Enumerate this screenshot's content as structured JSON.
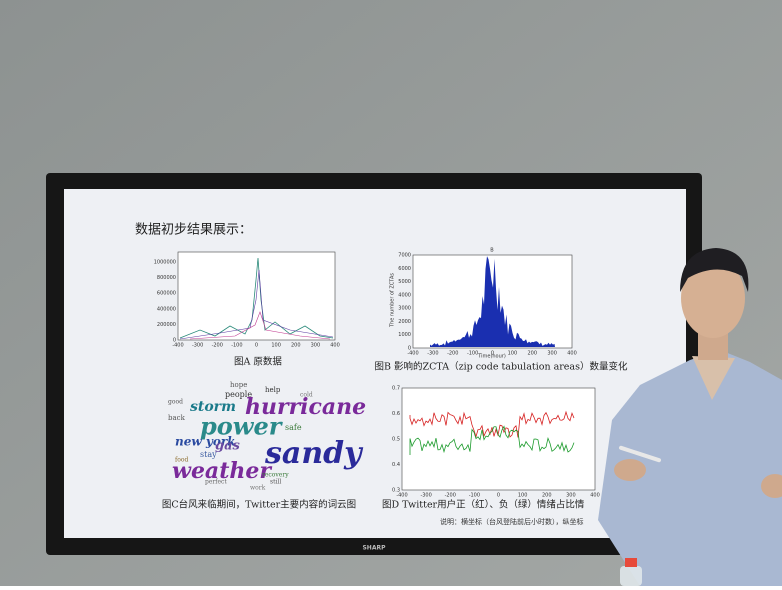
{
  "slide": {
    "title": "数据初步结果展示：",
    "figure_a": {
      "caption": "图A 原数据",
      "yticks": [
        0,
        200000,
        400000,
        600000,
        800000,
        1000000
      ],
      "xticks": [
        -400,
        -300,
        -200,
        -100,
        0,
        100,
        200,
        300,
        400
      ]
    },
    "figure_b": {
      "title": "B",
      "caption": "图B 影响的ZCTA（zip code tabulation areas）数量变化",
      "ylabel": "The number of ZCTAs",
      "xlabel": "Time(hour)",
      "yticks": [
        0,
        1000,
        2000,
        3000,
        4000,
        5000,
        6000,
        7000
      ],
      "xticks": [
        -400,
        -300,
        -200,
        -100,
        0,
        100,
        200,
        300,
        400
      ]
    },
    "figure_c": {
      "caption": "图C台风来临期间，Twitter主要内容的词云图",
      "words": [
        "hurricane",
        "sandy",
        "power",
        "weather",
        "storm",
        "new york",
        "gas",
        "people",
        "hope",
        "safe",
        "stay",
        "help",
        "cold",
        "back",
        "perfect",
        "still",
        "recovery",
        "good",
        "work",
        "food"
      ]
    },
    "figure_d": {
      "caption": "图D Twitter用户正（红）、负（绿）情绪占比情",
      "note": "说明：横坐标（台风登陆前后小时数），纵坐标",
      "yticks": [
        0.3,
        0.4,
        0.5,
        0.6,
        0.7
      ],
      "xticks": [
        -400,
        -300,
        -200,
        -100,
        0,
        100,
        200,
        300,
        400
      ]
    },
    "tv_brand": "SHARP"
  }
}
